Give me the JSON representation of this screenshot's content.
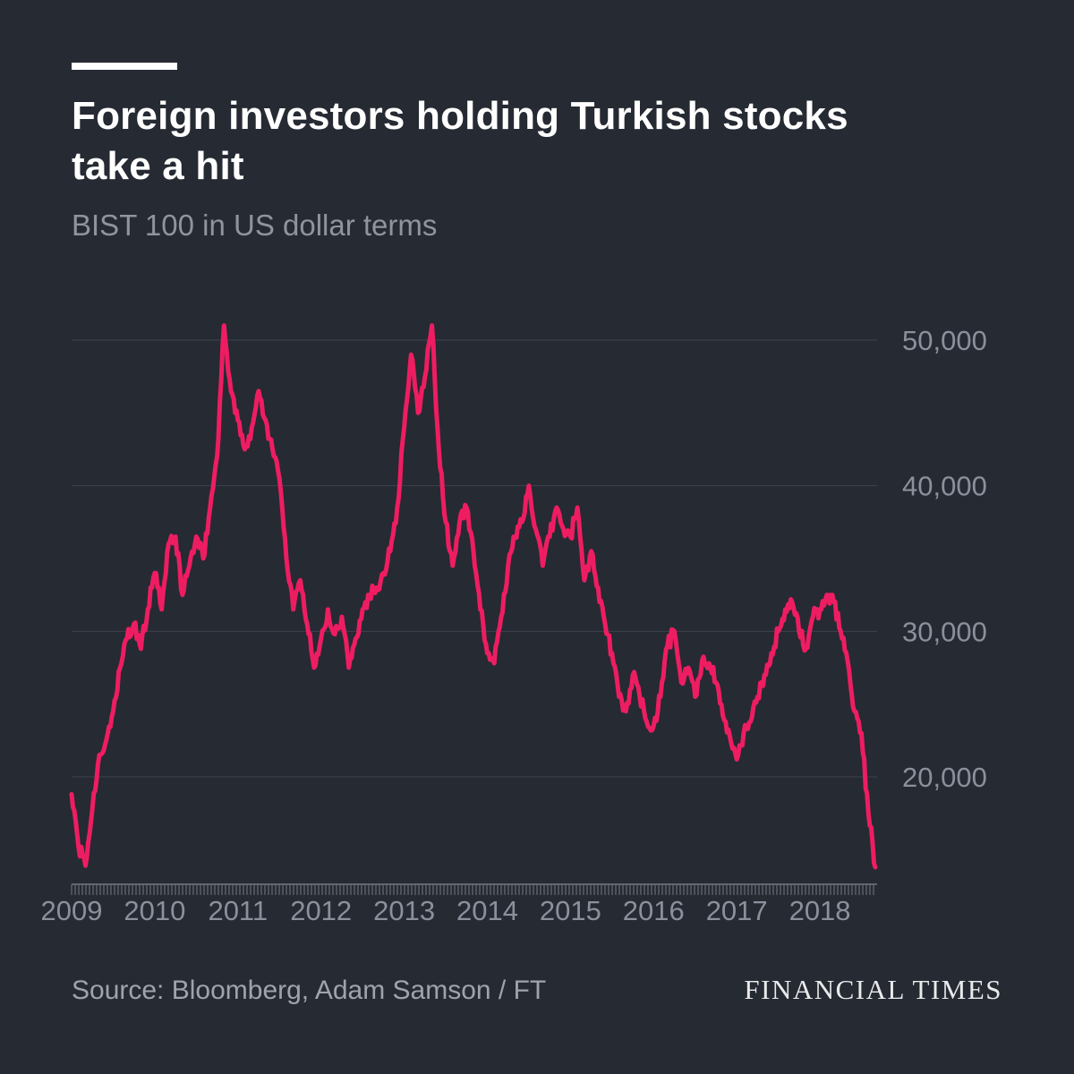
{
  "page": {
    "background": "#262a33"
  },
  "header": {
    "title_line1": "Foreign investors holding Turkish stocks",
    "title_line2": "take a hit",
    "subtitle": "BIST 100 in US dollar terms"
  },
  "footer": {
    "source": "Source: Bloomberg, Adam Samson / FT",
    "brand": "FINANCIAL TIMES"
  },
  "chart_data": {
    "type": "line",
    "title": "Foreign investors holding Turkish stocks take a hit",
    "subtitle": "BIST 100 in US dollar terms",
    "line_color": "#ee1d62",
    "grid_color": "#3d424c",
    "axis_color": "#737880",
    "label_color": "#8b909c",
    "x_start": {
      "year": 2009,
      "month": 1
    },
    "x_interval": "monthly",
    "x_tick_labels": [
      "2009",
      "2010",
      "2011",
      "2012",
      "2013",
      "2014",
      "2015",
      "2016",
      "2017",
      "2018"
    ],
    "y_ticks": [
      20000,
      30000,
      40000,
      50000
    ],
    "y_tick_labels": [
      "20,000",
      "30,000",
      "40,000",
      "50,000"
    ],
    "ylim": [
      12600,
      52500
    ],
    "xlim_note": "Jan 2009 to Sep 2018",
    "grid": "horizontal-only",
    "legend": "none",
    "y_axis_side": "right",
    "series": [
      {
        "name": "BIST 100 in US dollar terms",
        "values": [
          18800,
          15200,
          13900,
          17800,
          21500,
          22500,
          24500,
          27500,
          29500,
          30500,
          28800,
          31500,
          34000,
          31500,
          36000,
          36500,
          32500,
          34500,
          36500,
          35000,
          38500,
          42000,
          51000,
          46500,
          44500,
          42500,
          44000,
          46500,
          44500,
          42500,
          40500,
          35000,
          31500,
          33500,
          30500,
          27500,
          29500,
          31500,
          29800,
          31000,
          27500,
          29500,
          31500,
          32500,
          33000,
          34000,
          35500,
          38500,
          44000,
          49000,
          45000,
          47500,
          51000,
          42500,
          37500,
          34500,
          37500,
          38500,
          35500,
          31500,
          28500,
          27800,
          31000,
          34500,
          36500,
          37500,
          40000,
          37000,
          34500,
          36500,
          38500,
          37000,
          36500,
          38500,
          33500,
          35500,
          33000,
          30500,
          28500,
          25500,
          24500,
          27000,
          25500,
          23800,
          23500,
          25500,
          29000,
          30000,
          26500,
          27500,
          25500,
          28000,
          27800,
          26500,
          24200,
          22800,
          21200,
          23000,
          23800,
          25500,
          27000,
          28500,
          30000,
          31500,
          32000,
          30000,
          28800,
          31000,
          31500,
          32500,
          32000,
          30000,
          28000,
          24500,
          23000,
          17500,
          13800
        ]
      }
    ]
  }
}
